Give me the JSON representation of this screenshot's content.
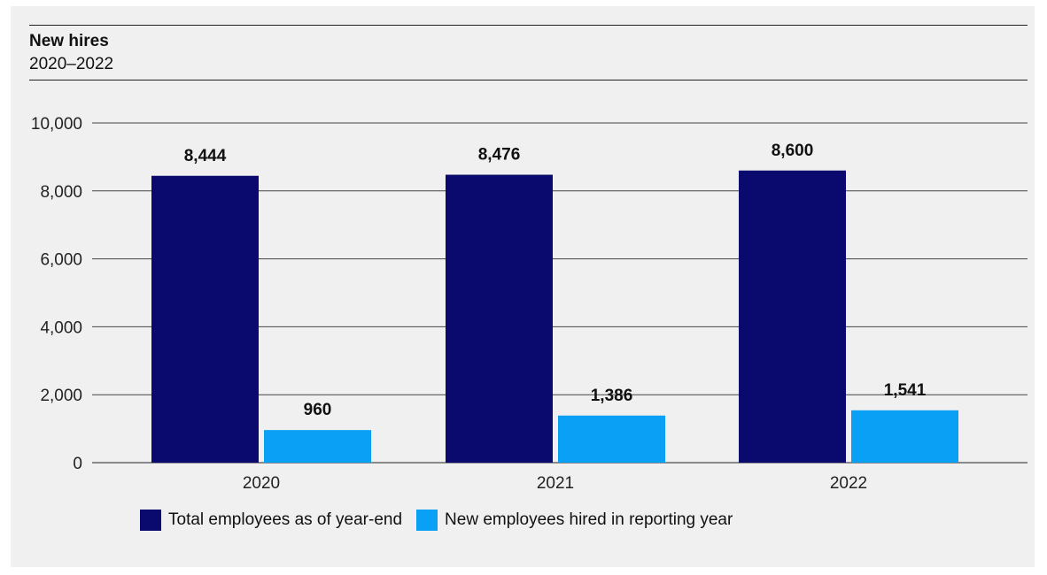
{
  "chart_data": {
    "type": "bar",
    "title": "New hires",
    "subtitle": "2020–2022",
    "categories": [
      "2020",
      "2021",
      "2022"
    ],
    "series": [
      {
        "name": "Total employees as of year-end",
        "values": [
          8444,
          8476,
          8600
        ],
        "color": "#0a0a6e",
        "labels": [
          "8,444",
          "8,476",
          "8,600"
        ]
      },
      {
        "name": "New employees hired in reporting year",
        "values": [
          960,
          1386,
          1541
        ],
        "color": "#0aa0f5",
        "labels": [
          "960",
          "1,386",
          "1,541"
        ]
      }
    ],
    "ylim": [
      0,
      10000
    ],
    "yticks": [
      0,
      2000,
      4000,
      6000,
      8000,
      10000
    ],
    "ytick_labels": [
      "0",
      "2,000",
      "4,000",
      "6,000",
      "8,000",
      "10,000"
    ],
    "grid": true,
    "legend": "bottom"
  }
}
